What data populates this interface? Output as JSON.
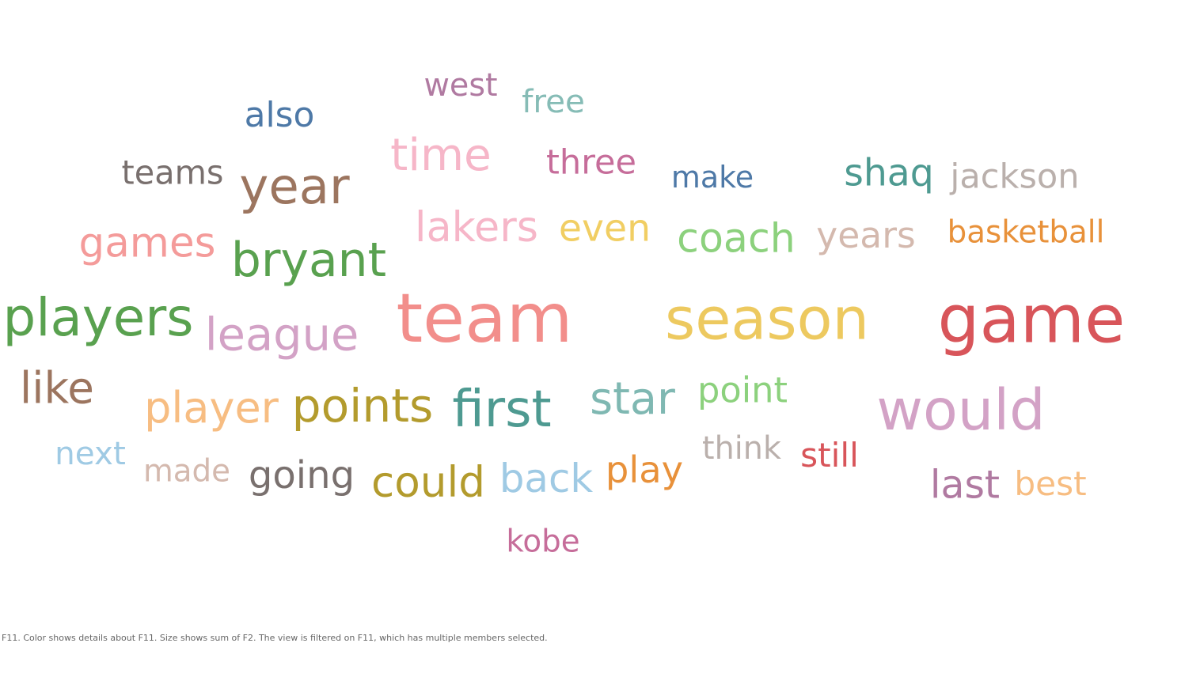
{
  "chart_data": {
    "type": "wordcloud",
    "words": [
      {
        "text": "team",
        "size": 100,
        "color": "#f28e8b"
      },
      {
        "text": "game",
        "size": 97,
        "color": "#d8555a"
      },
      {
        "text": "season",
        "size": 85,
        "color": "#edc95f"
      },
      {
        "text": "would",
        "size": 83,
        "color": "#d3a2c6"
      },
      {
        "text": "players",
        "size": 76,
        "color": "#59a14f"
      },
      {
        "text": "first",
        "size": 74,
        "color": "#4e9a91"
      },
      {
        "text": "year",
        "size": 72,
        "color": "#9c755f"
      },
      {
        "text": "bryant",
        "size": 69,
        "color": "#59a14f"
      },
      {
        "text": "points",
        "size": 67,
        "color": "#b39b2d"
      },
      {
        "text": "league",
        "size": 66,
        "color": "#d3a2c6"
      },
      {
        "text": "time",
        "size": 65,
        "color": "#f6b6c8"
      },
      {
        "text": "star",
        "size": 64,
        "color": "#7fb8b2"
      },
      {
        "text": "like",
        "size": 63,
        "color": "#9c755f"
      },
      {
        "text": "player",
        "size": 62,
        "color": "#f7bd82"
      },
      {
        "text": "could",
        "size": 61,
        "color": "#b39b2d"
      },
      {
        "text": "lakers",
        "size": 60,
        "color": "#f6b6c8"
      },
      {
        "text": "games",
        "size": 59,
        "color": "#f49b9a"
      },
      {
        "text": "coach",
        "size": 58,
        "color": "#8cd17d"
      },
      {
        "text": "back",
        "size": 57,
        "color": "#9fcae4"
      },
      {
        "text": "last",
        "size": 56,
        "color": "#b07aa1"
      },
      {
        "text": "going",
        "size": 55,
        "color": "#79706e"
      },
      {
        "text": "shaq",
        "size": 54,
        "color": "#4e9a91"
      },
      {
        "text": "even",
        "size": 54,
        "color": "#f1ce63"
      },
      {
        "text": "play",
        "size": 53,
        "color": "#e8913a"
      },
      {
        "text": "years",
        "size": 52,
        "color": "#d4b9ae"
      },
      {
        "text": "point",
        "size": 51,
        "color": "#8cd17d"
      },
      {
        "text": "also",
        "size": 50,
        "color": "#4e79a7"
      },
      {
        "text": "jackson",
        "size": 49,
        "color": "#bab0ac"
      },
      {
        "text": "three",
        "size": 49,
        "color": "#c66d9a"
      },
      {
        "text": "still",
        "size": 48,
        "color": "#d8555a"
      },
      {
        "text": "best",
        "size": 48,
        "color": "#f7bd82"
      },
      {
        "text": "teams",
        "size": 47,
        "color": "#79706e"
      },
      {
        "text": "next",
        "size": 46,
        "color": "#9fcae4"
      },
      {
        "text": "free",
        "size": 46,
        "color": "#86bcb6"
      },
      {
        "text": "west",
        "size": 45,
        "color": "#b07aa1"
      },
      {
        "text": "think",
        "size": 45,
        "color": "#bab0ac"
      },
      {
        "text": "kobe",
        "size": 44,
        "color": "#c66d9a"
      },
      {
        "text": "made",
        "size": 44,
        "color": "#d4b9ae"
      },
      {
        "text": "basketball",
        "size": 44,
        "color": "#e8913a"
      },
      {
        "text": "make",
        "size": 43,
        "color": "#4e79a7"
      }
    ]
  },
  "caption": "F11.  Color shows details about F11.  Size shows sum of F2. The view is filtered on F11, which has multiple members selected."
}
